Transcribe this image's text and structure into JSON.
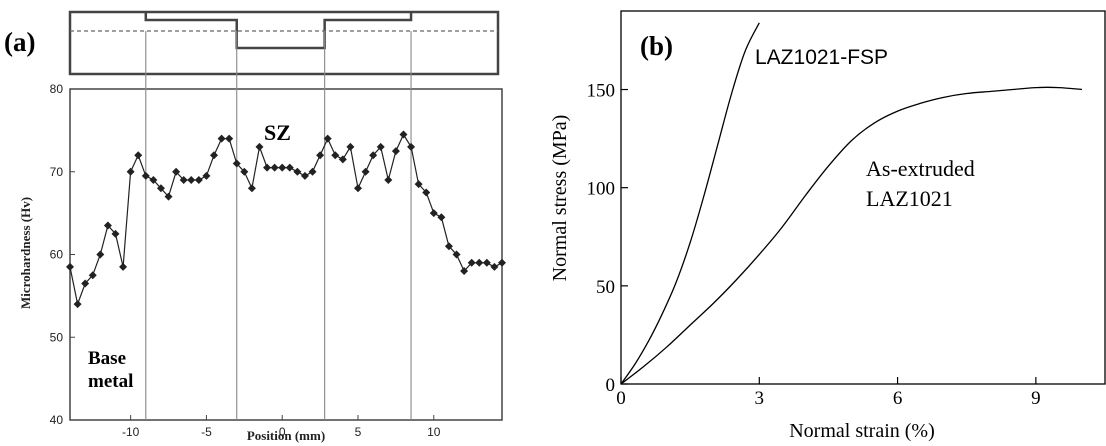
{
  "chart_data": [
    {
      "type": "line",
      "panel_label": "(a)",
      "xlabel": "Position (mm)",
      "ylabel": "Microhardness (Hv)",
      "xlim": [
        -14,
        14.5
      ],
      "ylim": [
        40,
        80
      ],
      "xticks": [
        -10,
        -5,
        0,
        5,
        10
      ],
      "yticks": [
        40,
        50,
        60,
        70,
        80
      ],
      "zone_boundaries": [
        -9,
        -3,
        2.8,
        8.5
      ],
      "annotations": {
        "sz": "SZ",
        "base1": "Base",
        "base2": "metal"
      },
      "series": [
        {
          "marker": "diamond",
          "x": [
            -14,
            -13.5,
            -13,
            -12.5,
            -12,
            -11.5,
            -11,
            -10.5,
            -10,
            -9.5,
            -9,
            -8.5,
            -8,
            -7.5,
            -7,
            -6.5,
            -6,
            -5.5,
            -5,
            -4.5,
            -4,
            -3.5,
            -3,
            -2.5,
            -2,
            -1.5,
            -1,
            -0.5,
            0,
            0.5,
            1,
            1.5,
            2,
            2.5,
            3,
            3.5,
            4,
            4.5,
            5,
            5.5,
            6,
            6.5,
            7,
            7.5,
            8,
            8.5,
            9,
            9.5,
            10,
            10.5,
            11,
            11.5,
            12,
            12.5,
            13,
            13.5,
            14,
            14.5
          ],
          "y": [
            58.5,
            54,
            56.5,
            57.5,
            60,
            63.5,
            62.5,
            58.5,
            70,
            72,
            69.5,
            69,
            68,
            67,
            70,
            69,
            69,
            69,
            69.5,
            72,
            74,
            74,
            71,
            70,
            68,
            73,
            70.5,
            70.5,
            70.5,
            70.5,
            70,
            69.5,
            70,
            72,
            74,
            72,
            71.5,
            73,
            68,
            70,
            72,
            73,
            69,
            72.5,
            74.5,
            73,
            68.5,
            67.5,
            65,
            64.5,
            61,
            60,
            58,
            59,
            59,
            59,
            58.5,
            59
          ]
        }
      ],
      "schematic": {
        "top_steps_x": [
          -9,
          8.5
        ],
        "pin_steps_x": [
          -3,
          2.8
        ]
      }
    },
    {
      "type": "line",
      "panel_label": "(b)",
      "xlabel": "Normal strain (%)",
      "ylabel": "Normal stress (MPa)",
      "xlim": [
        0,
        10.5
      ],
      "ylim": [
        0,
        190
      ],
      "xticks": [
        0,
        3,
        6,
        9
      ],
      "yticks": [
        0,
        50,
        100,
        150
      ],
      "series": [
        {
          "name": "LAZ1021-FSP",
          "label_lines": [
            "LAZ1021-FSP"
          ],
          "x": [
            0,
            0.3,
            0.6,
            0.9,
            1.2,
            1.5,
            1.8,
            2.1,
            2.4,
            2.7,
            3.0
          ],
          "y": [
            0,
            10,
            22,
            36,
            52,
            72,
            96,
            122,
            148,
            170,
            184
          ]
        },
        {
          "name": "As-extruded LAZ1021",
          "label_lines": [
            "As-extruded",
            "LAZ1021"
          ],
          "x": [
            0,
            0.5,
            1,
            1.5,
            2,
            2.5,
            3,
            3.5,
            4,
            4.5,
            5,
            5.5,
            6,
            6.5,
            7,
            7.5,
            8,
            8.5,
            9,
            9.5,
            10
          ],
          "y": [
            0,
            9,
            19,
            30,
            41,
            53,
            66,
            80,
            96,
            111,
            124,
            133,
            139,
            143,
            146,
            148,
            149,
            150,
            151,
            151,
            150
          ]
        }
      ]
    }
  ]
}
